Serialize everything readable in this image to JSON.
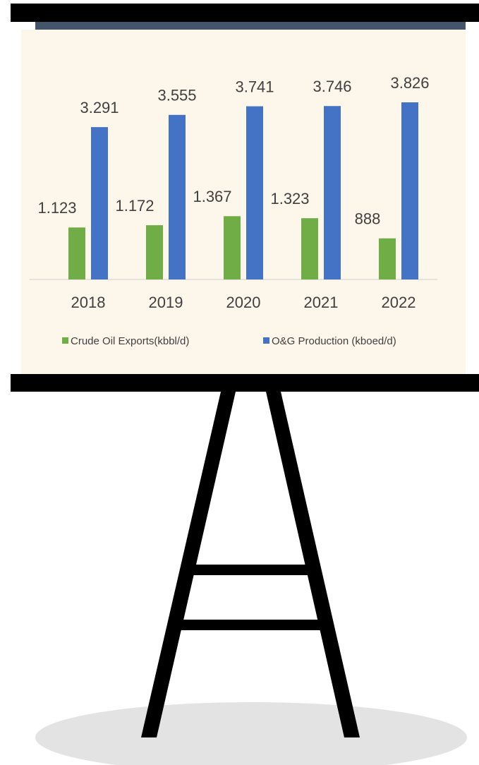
{
  "chart_data": {
    "type": "bar",
    "categories": [
      "2018",
      "2019",
      "2020",
      "2021",
      "2022"
    ],
    "series": [
      {
        "name": "Crude Oil Exports(kbbl/d)",
        "color": "#70ad47",
        "values": [
          1123,
          1172,
          1367,
          1323,
          888
        ],
        "value_labels": [
          "1.123",
          "1.172",
          "1.367",
          "1.323",
          "888"
        ]
      },
      {
        "name": "O&G Production (kboed/d)",
        "color": "#4472c4",
        "values": [
          3291,
          3555,
          3741,
          3746,
          3826
        ],
        "value_labels": [
          "3.291",
          "3.555",
          "3.741",
          "3.746",
          "3.826"
        ]
      }
    ]
  }
}
